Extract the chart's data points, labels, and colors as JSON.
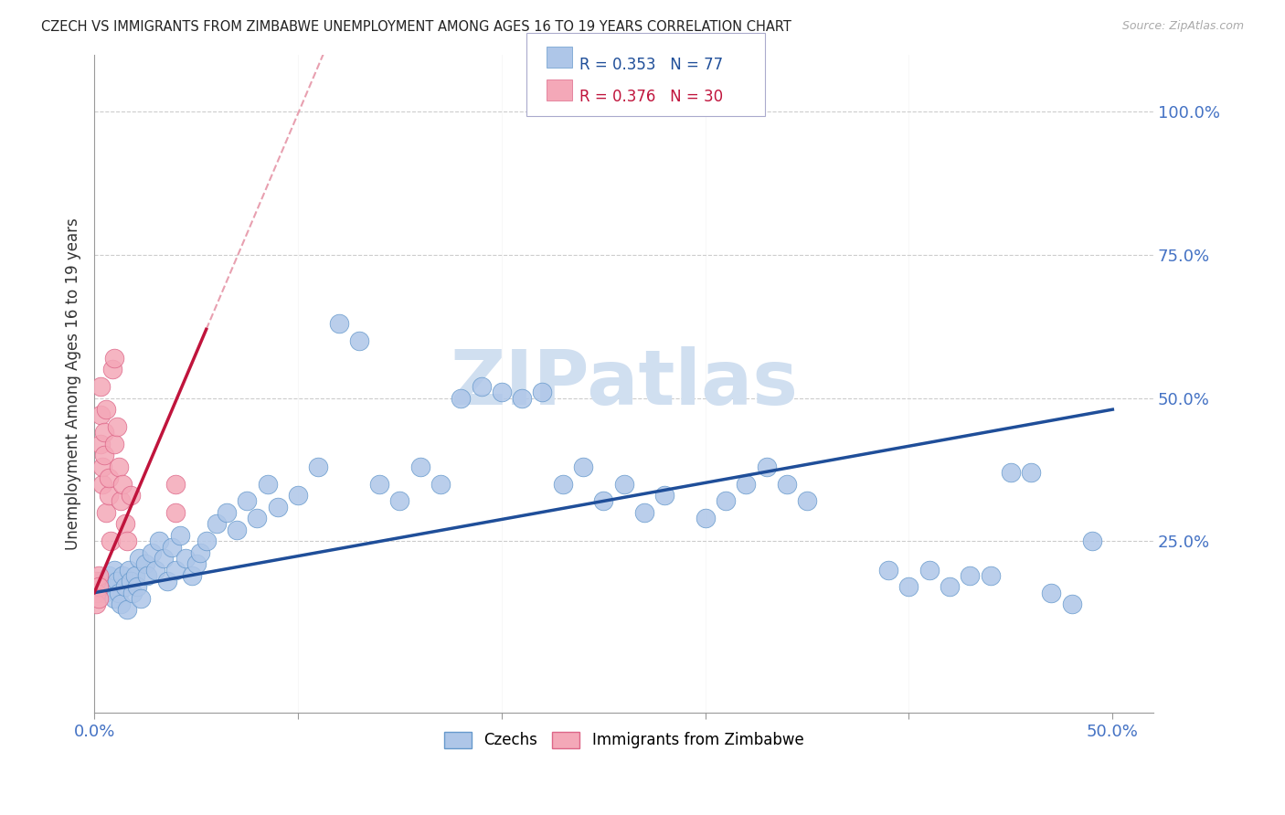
{
  "title": "CZECH VS IMMIGRANTS FROM ZIMBABWE UNEMPLOYMENT AMONG AGES 16 TO 19 YEARS CORRELATION CHART",
  "source": "Source: ZipAtlas.com",
  "ylabel": "Unemployment Among Ages 16 to 19 years",
  "xlim": [
    0.0,
    0.52
  ],
  "ylim": [
    -0.05,
    1.1
  ],
  "xticks": [
    0.0,
    0.5
  ],
  "xticklabels": [
    "0.0%",
    "50.0%"
  ],
  "ytick_positions": [
    0.0,
    0.25,
    0.5,
    0.75,
    1.0
  ],
  "ytick_labels": [
    "",
    "25.0%",
    "50.0%",
    "75.0%",
    "100.0%"
  ],
  "grid_color": "#cccccc",
  "background_color": "#ffffff",
  "tick_label_color": "#4472c4",
  "legend_R_czech": "0.353",
  "legend_N_czech": "77",
  "legend_R_zimb": "0.376",
  "legend_N_zimb": "30",
  "czech_color": "#aec6e8",
  "czech_edge_color": "#6699cc",
  "zimb_color": "#f4a8b8",
  "zimb_edge_color": "#dd6688",
  "czech_line_color": "#1f4e99",
  "zimb_line_color": "#c0143c",
  "zimb_line_dash_color": "#e8a0b0",
  "watermark_color": "#d0dff0",
  "czech_x": [
    0.003,
    0.005,
    0.007,
    0.008,
    0.01,
    0.01,
    0.011,
    0.012,
    0.013,
    0.014,
    0.015,
    0.016,
    0.017,
    0.018,
    0.019,
    0.02,
    0.021,
    0.022,
    0.023,
    0.025,
    0.026,
    0.028,
    0.03,
    0.032,
    0.034,
    0.036,
    0.038,
    0.04,
    0.042,
    0.045,
    0.048,
    0.05,
    0.052,
    0.055,
    0.06,
    0.065,
    0.07,
    0.075,
    0.08,
    0.085,
    0.09,
    0.1,
    0.11,
    0.12,
    0.13,
    0.14,
    0.15,
    0.16,
    0.17,
    0.18,
    0.19,
    0.2,
    0.21,
    0.22,
    0.23,
    0.24,
    0.25,
    0.26,
    0.27,
    0.28,
    0.3,
    0.31,
    0.32,
    0.33,
    0.34,
    0.35,
    0.39,
    0.4,
    0.41,
    0.42,
    0.43,
    0.44,
    0.45,
    0.46,
    0.47,
    0.48,
    0.49
  ],
  "czech_y": [
    0.18,
    0.16,
    0.19,
    0.17,
    0.2,
    0.15,
    0.18,
    0.16,
    0.14,
    0.19,
    0.17,
    0.13,
    0.2,
    0.18,
    0.16,
    0.19,
    0.17,
    0.22,
    0.15,
    0.21,
    0.19,
    0.23,
    0.2,
    0.25,
    0.22,
    0.18,
    0.24,
    0.2,
    0.26,
    0.22,
    0.19,
    0.21,
    0.23,
    0.25,
    0.28,
    0.3,
    0.27,
    0.32,
    0.29,
    0.35,
    0.31,
    0.33,
    0.38,
    0.63,
    0.6,
    0.35,
    0.32,
    0.38,
    0.35,
    0.5,
    0.52,
    0.51,
    0.5,
    0.51,
    0.35,
    0.38,
    0.32,
    0.35,
    0.3,
    0.33,
    0.29,
    0.32,
    0.35,
    0.38,
    0.35,
    0.32,
    0.2,
    0.17,
    0.2,
    0.17,
    0.19,
    0.19,
    0.37,
    0.37,
    0.16,
    0.14,
    0.25
  ],
  "zimb_x": [
    0.001,
    0.001,
    0.001,
    0.002,
    0.002,
    0.002,
    0.003,
    0.003,
    0.003,
    0.004,
    0.004,
    0.005,
    0.005,
    0.006,
    0.006,
    0.007,
    0.007,
    0.008,
    0.009,
    0.01,
    0.01,
    0.011,
    0.012,
    0.013,
    0.014,
    0.015,
    0.016,
    0.018,
    0.04,
    0.04
  ],
  "zimb_y": [
    0.18,
    0.16,
    0.14,
    0.19,
    0.17,
    0.15,
    0.42,
    0.47,
    0.52,
    0.35,
    0.38,
    0.4,
    0.44,
    0.48,
    0.3,
    0.33,
    0.36,
    0.25,
    0.55,
    0.57,
    0.42,
    0.45,
    0.38,
    0.32,
    0.35,
    0.28,
    0.25,
    0.33,
    0.3,
    0.35
  ],
  "czech_line_x": [
    0.0,
    0.5
  ],
  "czech_line_y": [
    0.16,
    0.48
  ],
  "zimb_line_x": [
    0.0,
    0.055
  ],
  "zimb_line_y": [
    0.16,
    0.62
  ]
}
